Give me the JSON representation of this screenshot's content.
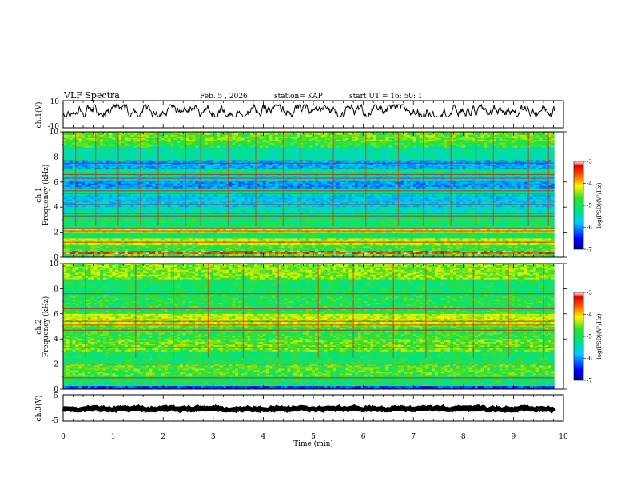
{
  "header": {
    "title": "VLF Spectra",
    "date": "Feb. 5 , 2026",
    "station": "station= KAP",
    "start": "start  UT =   16: 50: 1"
  },
  "chart_data": [
    {
      "type": "line",
      "panel": "ch1_waveform",
      "ylabel": "ch.1(V)",
      "ylim": [
        -10,
        10
      ],
      "yticks": [
        "10",
        "-10"
      ],
      "xlim": [
        0,
        10
      ],
      "x_extent": [
        0,
        9.82
      ],
      "series": [
        {
          "values_range": [
            -2,
            7
          ],
          "mean": 2.5,
          "color": "#000000"
        }
      ]
    },
    {
      "type": "heatmap",
      "panel": "ch1_spectrogram",
      "ylabel": "ch.1\nFrequency  (kHz)",
      "ylim": [
        0,
        10
      ],
      "yticks": [
        "0",
        "2",
        "4",
        "6",
        "8",
        "10"
      ],
      "xlim": [
        0,
        10
      ],
      "x_extent": [
        0,
        9.82
      ],
      "colorbar": {
        "label": "log(PSD)(V²/Hz)",
        "range": [
          -7,
          -3
        ],
        "ticks": [
          "-3",
          "-4",
          "-5",
          "-6",
          "-7"
        ]
      },
      "bands": [
        {
          "f_low": 0.0,
          "f_high": 0.25,
          "level": -4.6
        },
        {
          "f_low": 0.25,
          "f_high": 0.5,
          "level": -3.4
        },
        {
          "f_low": 0.5,
          "f_high": 1.0,
          "level": -4.7
        },
        {
          "f_low": 1.0,
          "f_high": 1.5,
          "level": -4.2
        },
        {
          "f_low": 1.5,
          "f_high": 2.0,
          "level": -4.9
        },
        {
          "f_low": 2.0,
          "f_high": 2.3,
          "level": -4.0
        },
        {
          "f_low": 2.3,
          "f_high": 3.0,
          "level": -4.9
        },
        {
          "f_low": 3.0,
          "f_high": 3.5,
          "level": -5.0
        },
        {
          "f_low": 3.5,
          "f_high": 4.0,
          "level": -5.3
        },
        {
          "f_low": 4.0,
          "f_high": 5.0,
          "level": -5.6
        },
        {
          "f_low": 5.0,
          "f_high": 5.5,
          "level": -5.1
        },
        {
          "f_low": 5.5,
          "f_high": 6.1,
          "level": -5.9
        },
        {
          "f_low": 6.1,
          "f_high": 6.6,
          "level": -5.4
        },
        {
          "f_low": 6.6,
          "f_high": 7.0,
          "level": -4.9
        },
        {
          "f_low": 7.0,
          "f_high": 7.8,
          "level": -5.8
        },
        {
          "f_low": 7.8,
          "f_high": 8.8,
          "level": -5.2
        },
        {
          "f_low": 8.8,
          "f_high": 9.2,
          "level": -4.7
        },
        {
          "f_low": 9.2,
          "f_high": 10.0,
          "level": -4.5
        }
      ],
      "lines": [
        0.4,
        1.2,
        2.1,
        2.3,
        3.3,
        3.5,
        4.2,
        5.1,
        5.3,
        6.3,
        6.6,
        7.5
      ],
      "bursts": [
        0.25,
        0.65,
        1.1,
        1.55,
        1.9,
        2.45,
        2.75,
        3.3,
        3.85,
        4.4,
        4.75,
        5.4,
        6.05,
        6.7,
        7.2,
        7.75,
        8.25,
        8.6,
        9.3,
        9.7
      ]
    },
    {
      "type": "heatmap",
      "panel": "ch2_spectrogram",
      "ylabel": "ch.2\nFrequency  (kHz)",
      "ylim": [
        0,
        10
      ],
      "yticks": [
        "0",
        "2",
        "4",
        "6",
        "8",
        "10"
      ],
      "xlim": [
        0,
        10
      ],
      "x_extent": [
        0,
        9.82
      ],
      "colorbar": {
        "label": "log(PSD)(V²/Hz)",
        "range": [
          -7,
          -3
        ],
        "ticks": [
          "-3",
          "-4",
          "-5",
          "-6",
          "-7"
        ]
      },
      "bands": [
        {
          "f_low": 0.0,
          "f_high": 0.2,
          "level": -6.3
        },
        {
          "f_low": 0.2,
          "f_high": 1.0,
          "level": -4.9
        },
        {
          "f_low": 1.0,
          "f_high": 2.0,
          "level": -4.6
        },
        {
          "f_low": 2.0,
          "f_high": 3.0,
          "level": -4.9
        },
        {
          "f_low": 3.0,
          "f_high": 4.0,
          "level": -4.5
        },
        {
          "f_low": 4.0,
          "f_high": 5.0,
          "level": -4.7
        },
        {
          "f_low": 5.0,
          "f_high": 6.0,
          "level": -4.2
        },
        {
          "f_low": 6.0,
          "f_high": 7.5,
          "level": -4.8
        },
        {
          "f_low": 7.5,
          "f_high": 8.7,
          "level": -4.9
        },
        {
          "f_low": 8.7,
          "f_high": 10.0,
          "level": -4.4
        }
      ],
      "lines": [
        0.9,
        2.0,
        3.3,
        3.6,
        4.7,
        5.1,
        5.4,
        6.4,
        7.6
      ],
      "bursts": [
        0.45,
        1.45,
        2.2,
        2.9,
        3.6,
        4.3,
        5.1,
        5.8,
        6.6,
        7.25,
        8.2,
        8.9,
        9.6
      ]
    },
    {
      "type": "line",
      "panel": "ch3_waveform",
      "ylabel": "ch.3(V)",
      "ylim": [
        -5,
        5
      ],
      "yticks": [
        "5",
        "-5"
      ],
      "xlim": [
        0,
        10
      ],
      "xlabel": "Time  (min)",
      "xticks": [
        "0",
        "1",
        "2",
        "3",
        "4",
        "5",
        "6",
        "7",
        "8",
        "9",
        "10"
      ],
      "x_extent": [
        0,
        9.82
      ],
      "series": [
        {
          "values_range": [
            -0.8,
            0.2
          ],
          "mean": -0.3,
          "color": "#000000"
        }
      ]
    }
  ]
}
